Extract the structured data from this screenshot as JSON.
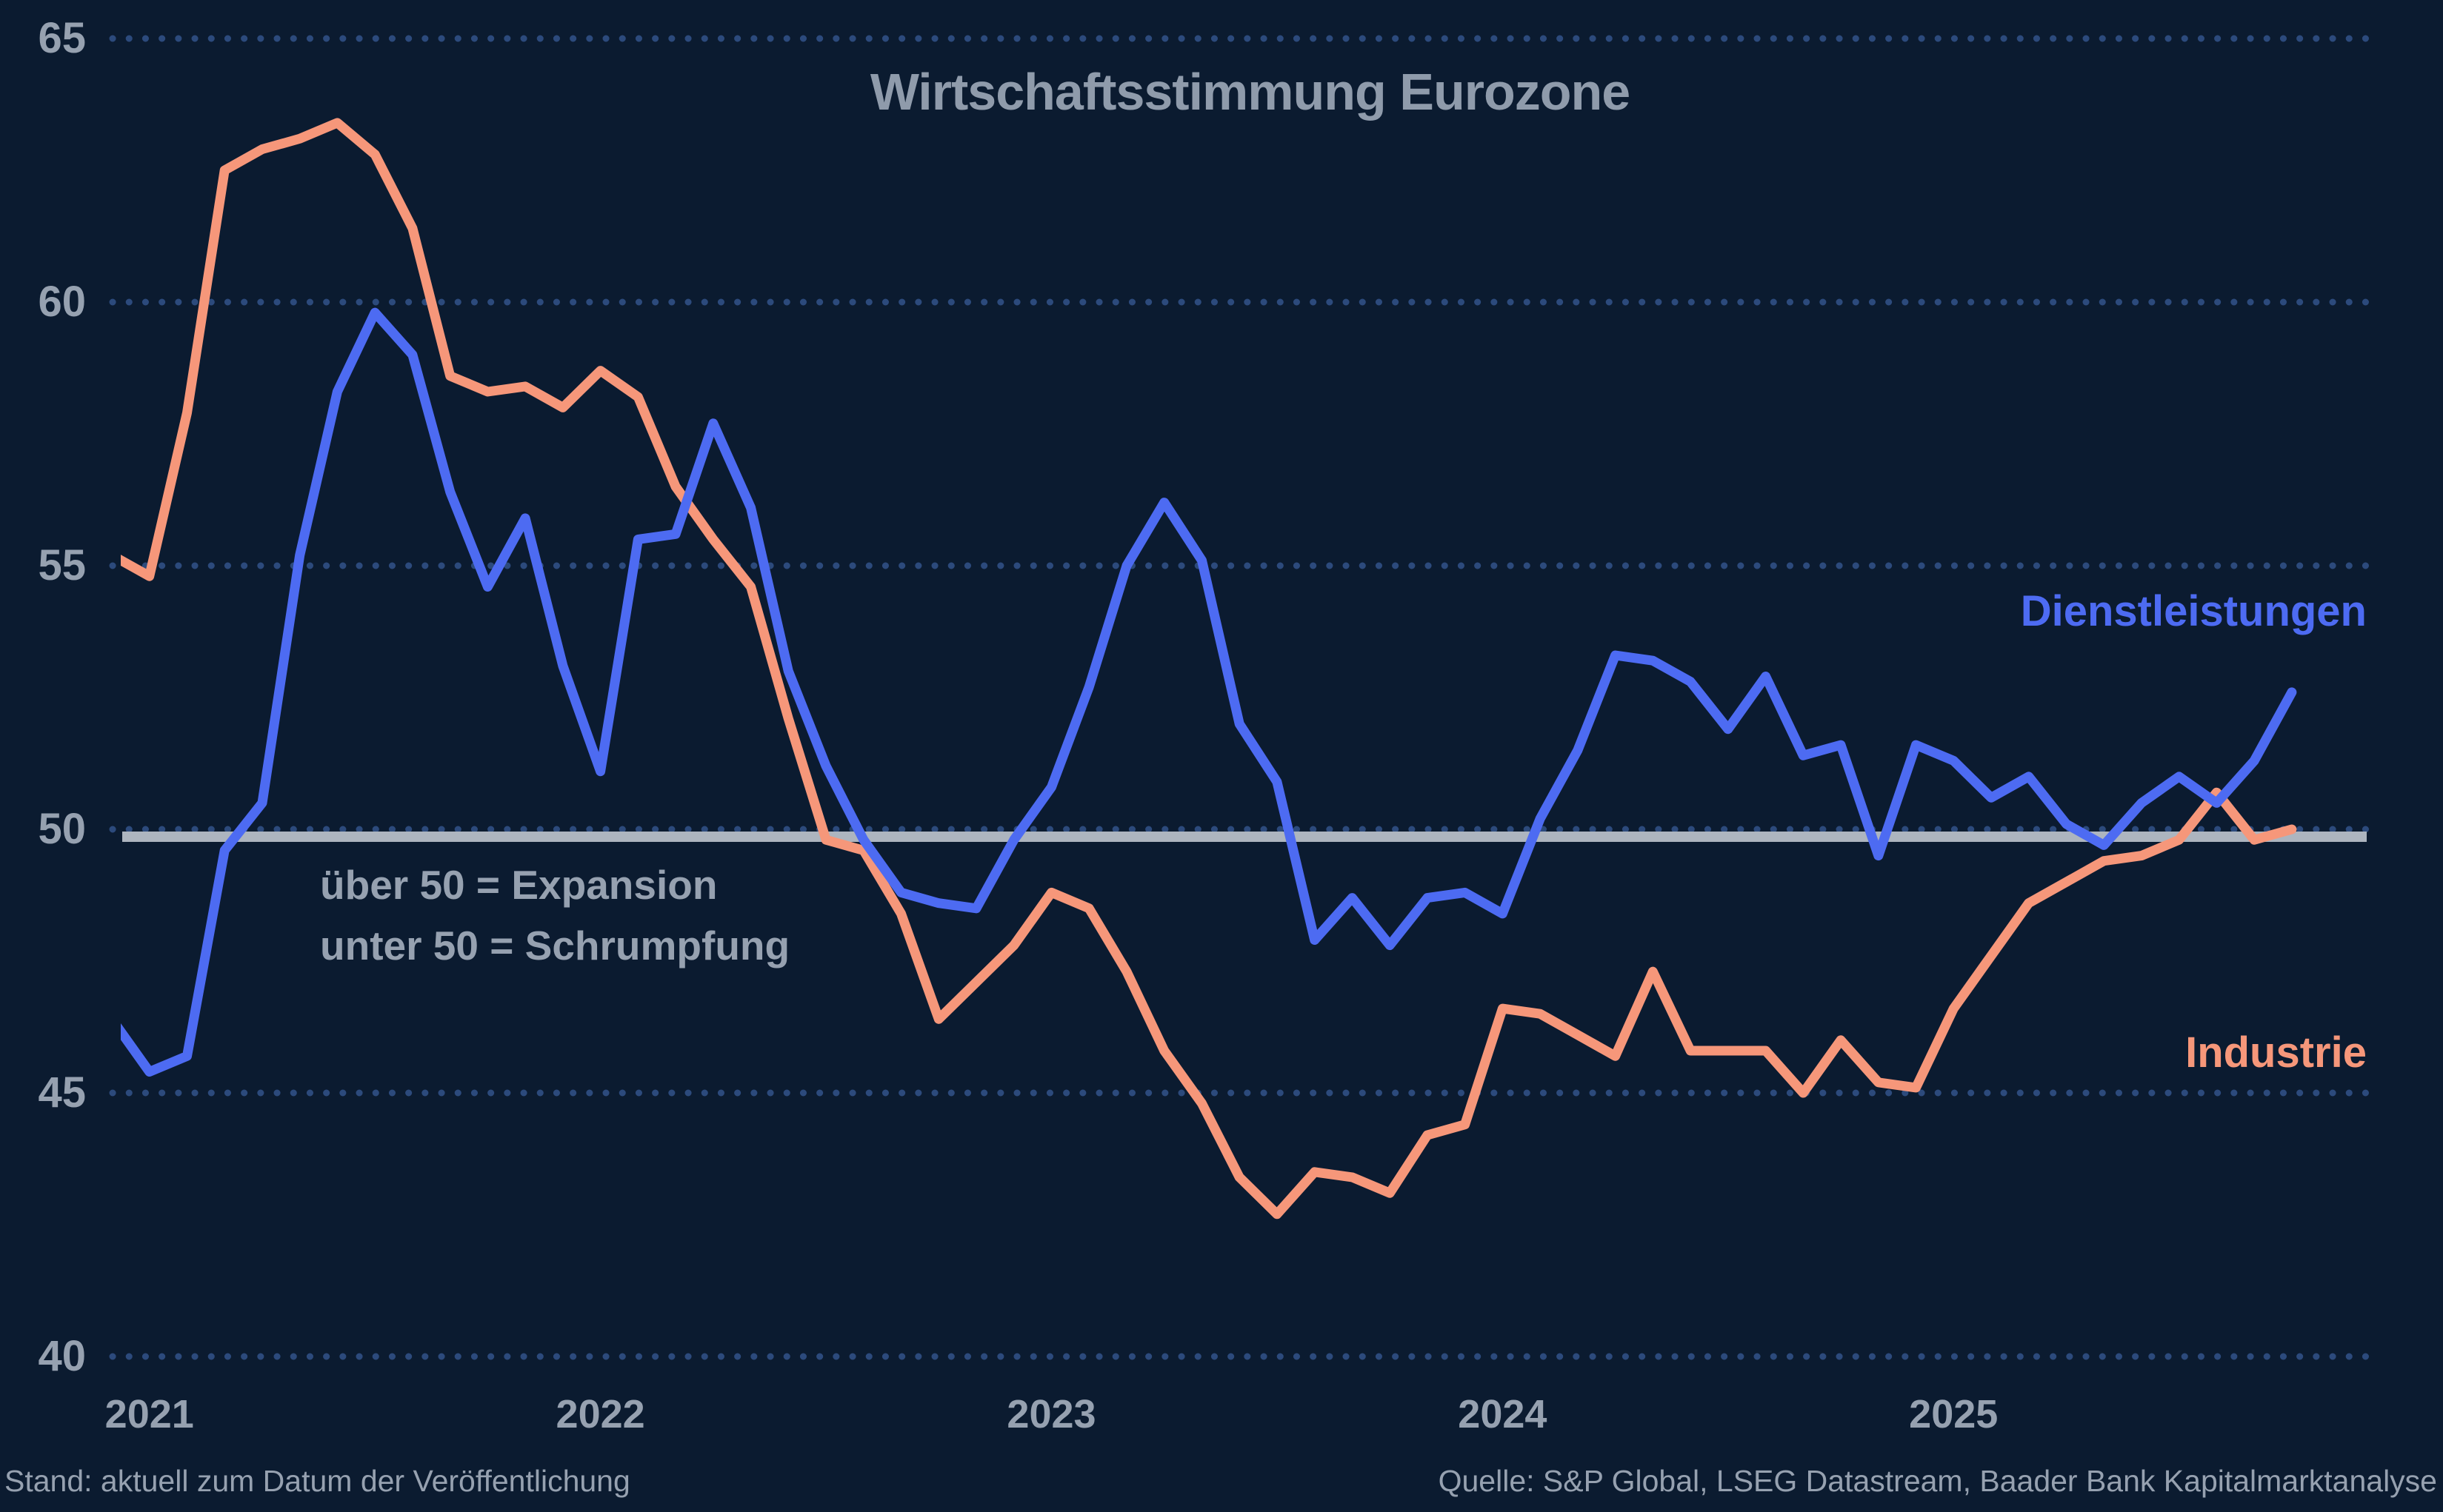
{
  "colors": {
    "background": "#0b1b30",
    "grid_dots": "#2c4a7c",
    "reference_line": "#adb5bf",
    "text_muted": "#96a1b0",
    "title_text": "#8f9bab",
    "services_blue": "#4d6bf2",
    "industry_orange": "#f6977a"
  },
  "chart_data": {
    "type": "line",
    "title": "Wirtschaftsstimmung Eurozone",
    "ylabel": "",
    "xlabel": "",
    "ylim": [
      40,
      65
    ],
    "yticks": [
      65,
      60,
      55,
      50,
      45,
      40
    ],
    "grid": "dotted-horizontal",
    "legend_position": "right-inline",
    "reference_line": {
      "value": 50
    },
    "x": [
      "2020-12",
      "2021-01",
      "2021-02",
      "2021-03",
      "2021-04",
      "2021-05",
      "2021-06",
      "2021-07",
      "2021-08",
      "2021-09",
      "2021-10",
      "2021-11",
      "2021-12",
      "2022-01",
      "2022-02",
      "2022-03",
      "2022-04",
      "2022-05",
      "2022-06",
      "2022-07",
      "2022-08",
      "2022-09",
      "2022-10",
      "2022-11",
      "2022-12",
      "2023-01",
      "2023-02",
      "2023-03",
      "2023-04",
      "2023-05",
      "2023-06",
      "2023-07",
      "2023-08",
      "2023-09",
      "2023-10",
      "2023-11",
      "2023-12",
      "2024-01",
      "2024-02",
      "2024-03",
      "2024-04",
      "2024-05",
      "2024-06",
      "2024-07",
      "2024-08",
      "2024-09",
      "2024-10",
      "2024-11",
      "2024-12",
      "2025-01",
      "2025-02",
      "2025-03",
      "2025-04",
      "2025-05",
      "2025-06",
      "2025-07",
      "2025-08",
      "2025-09",
      "2025-10"
    ],
    "xticks": [
      {
        "label": "2021",
        "month_index": 1
      },
      {
        "label": "2022",
        "month_index": 13
      },
      {
        "label": "2023",
        "month_index": 25
      },
      {
        "label": "2024",
        "month_index": 37
      },
      {
        "label": "2025",
        "month_index": 49
      }
    ],
    "series": [
      {
        "name": "Dienstleistungen",
        "color": "#4d6bf2",
        "values": [
          46.4,
          45.4,
          45.7,
          49.6,
          50.5,
          55.2,
          58.3,
          59.8,
          59.0,
          56.4,
          54.6,
          55.9,
          53.1,
          51.1,
          55.5,
          55.6,
          57.7,
          56.1,
          53.0,
          51.2,
          49.8,
          48.8,
          48.6,
          48.5,
          49.8,
          50.8,
          52.7,
          55.0,
          56.2,
          55.1,
          52.0,
          50.9,
          47.9,
          48.7,
          47.8,
          48.7,
          48.8,
          48.4,
          50.2,
          51.5,
          53.3,
          53.2,
          52.8,
          51.9,
          52.9,
          51.4,
          51.6,
          49.5,
          51.6,
          51.3,
          50.6,
          51.0,
          50.1,
          49.7,
          50.5,
          51.0,
          50.5,
          51.3,
          52.6
        ]
      },
      {
        "name": "Industrie",
        "color": "#f6977a",
        "values": [
          55.2,
          54.8,
          57.9,
          62.5,
          62.9,
          63.1,
          63.4,
          62.8,
          61.4,
          58.6,
          58.3,
          58.4,
          58.0,
          58.7,
          58.2,
          56.5,
          55.5,
          54.6,
          52.1,
          49.8,
          49.6,
          48.4,
          46.4,
          47.1,
          47.8,
          48.8,
          48.5,
          47.3,
          45.8,
          44.8,
          43.4,
          42.7,
          43.5,
          43.4,
          43.1,
          44.2,
          44.4,
          46.6,
          46.5,
          46.1,
          45.7,
          47.3,
          45.8,
          45.8,
          45.8,
          45.0,
          46.0,
          45.2,
          45.1,
          46.6,
          47.6,
          48.6,
          49.0,
          49.4,
          49.5,
          49.8,
          50.7,
          49.8,
          50.0
        ]
      }
    ]
  },
  "annotation": {
    "line1": "über 50 = Expansion",
    "line2": "unter 50 = Schrumpfung"
  },
  "footer": {
    "left": "Stand: aktuell zum Datum der Veröffentlichung",
    "right": "Quelle: S&P Global, LSEG Datastream, Baader Bank Kapitalmarktanalyse"
  }
}
